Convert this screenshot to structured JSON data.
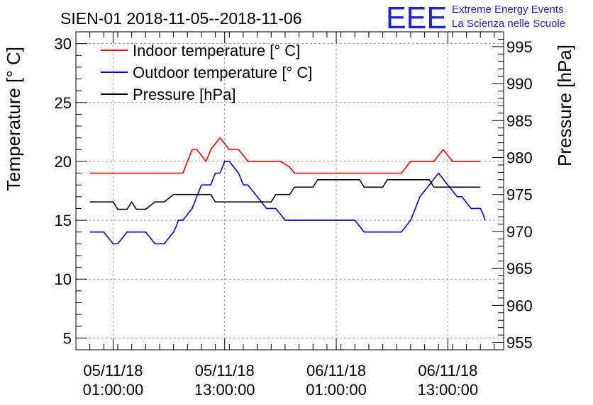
{
  "title": "SIEN-01 2018-11-05--2018-11-06",
  "logo": {
    "mark": "EEE",
    "line1": "Extreme Energy Events",
    "line2": "La Scienza nelle Scuole"
  },
  "chart_data": {
    "type": "line",
    "title": "SIEN-01 2018-11-05--2018-11-06",
    "xlabel": "",
    "ylabel": "Temperature [° C]",
    "y2label": "Pressure [hPa]",
    "xlim_hours": [
      -3,
      43
    ],
    "ylim": [
      4,
      31
    ],
    "y2lim": [
      954,
      997
    ],
    "y_ticks": [
      5,
      10,
      15,
      20,
      25,
      30
    ],
    "y2_ticks": [
      955,
      960,
      965,
      970,
      975,
      980,
      985,
      990,
      995
    ],
    "x_ticks": [
      {
        "hour": 1,
        "line1": "05/11/18",
        "line2": "01:00:00"
      },
      {
        "hour": 13,
        "line1": "05/11/18",
        "line2": "13:00:00"
      },
      {
        "hour": 25,
        "line1": "06/11/18",
        "line2": "01:00:00"
      },
      {
        "hour": 37,
        "line1": "06/11/18",
        "line2": "13:00:00"
      }
    ],
    "grid": true,
    "legend_position": "top-left",
    "series": [
      {
        "name": "Indoor temperature [° C]",
        "axis": "left",
        "color": "#ff0000",
        "points": [
          [
            -1.5,
            19
          ],
          [
            8.5,
            19
          ],
          [
            9,
            20
          ],
          [
            9.5,
            21
          ],
          [
            10,
            21
          ],
          [
            10.5,
            20.5
          ],
          [
            11,
            20
          ],
          [
            11.5,
            21
          ],
          [
            12,
            21.5
          ],
          [
            12.5,
            22
          ],
          [
            13,
            21.5
          ],
          [
            13.5,
            21
          ],
          [
            14,
            21
          ],
          [
            14.5,
            21
          ],
          [
            15,
            20.5
          ],
          [
            15.5,
            20
          ],
          [
            18,
            20
          ],
          [
            19,
            20
          ],
          [
            20,
            19.5
          ],
          [
            20.5,
            19
          ],
          [
            31,
            19
          ],
          [
            32,
            19
          ],
          [
            32.5,
            19.5
          ],
          [
            33,
            20
          ],
          [
            35.5,
            20
          ],
          [
            36,
            20.5
          ],
          [
            36.5,
            21
          ],
          [
            37,
            20.5
          ],
          [
            37.5,
            20
          ],
          [
            38.5,
            20
          ],
          [
            40.5,
            20
          ]
        ]
      },
      {
        "name": "Outdoor temperature [° C]",
        "axis": "left",
        "color": "#0000dd",
        "points": [
          [
            -1.5,
            14
          ],
          [
            0,
            14
          ],
          [
            0.5,
            13.5
          ],
          [
            1,
            13
          ],
          [
            1.5,
            13
          ],
          [
            2,
            13.5
          ],
          [
            2.5,
            14
          ],
          [
            4.5,
            14
          ],
          [
            5,
            13.5
          ],
          [
            5.5,
            13
          ],
          [
            6,
            13
          ],
          [
            6.5,
            13
          ],
          [
            7,
            13.5
          ],
          [
            7.5,
            14
          ],
          [
            7.8,
            14.5
          ],
          [
            8,
            15
          ],
          [
            8.5,
            15
          ],
          [
            9,
            15.5
          ],
          [
            9.5,
            16
          ],
          [
            10,
            17
          ],
          [
            10.5,
            18
          ],
          [
            11.5,
            18
          ],
          [
            12,
            19
          ],
          [
            12.5,
            19
          ],
          [
            13,
            20
          ],
          [
            13.5,
            20
          ],
          [
            14,
            19.5
          ],
          [
            14.5,
            19
          ],
          [
            15,
            18
          ],
          [
            15.5,
            18
          ],
          [
            16,
            17.5
          ],
          [
            16.5,
            17
          ],
          [
            17,
            16.5
          ],
          [
            17.5,
            16
          ],
          [
            18.5,
            16
          ],
          [
            19,
            15.5
          ],
          [
            19.5,
            15
          ],
          [
            27,
            15
          ],
          [
            27.5,
            14.5
          ],
          [
            28,
            14
          ],
          [
            32,
            14
          ],
          [
            32.5,
            14.5
          ],
          [
            33,
            15
          ],
          [
            33.5,
            16
          ],
          [
            34,
            17
          ],
          [
            34.5,
            17.5
          ],
          [
            35,
            18
          ],
          [
            35.5,
            18.5
          ],
          [
            36,
            19
          ],
          [
            36.5,
            18.5
          ],
          [
            37,
            18
          ],
          [
            37.5,
            17.5
          ],
          [
            38,
            17
          ],
          [
            38.5,
            17
          ],
          [
            39,
            16.5
          ],
          [
            39.5,
            16
          ],
          [
            40.5,
            16
          ],
          [
            40.8,
            15.5
          ],
          [
            41,
            15
          ]
        ]
      },
      {
        "name": "Pressure [hPa]",
        "axis": "right",
        "color": "#000000",
        "points": [
          [
            -1.5,
            974
          ],
          [
            1,
            974
          ],
          [
            1.5,
            973
          ],
          [
            2.5,
            973
          ],
          [
            3,
            974
          ],
          [
            3.5,
            973
          ],
          [
            4.5,
            973
          ],
          [
            5.5,
            974
          ],
          [
            6.5,
            974
          ],
          [
            7.5,
            975
          ],
          [
            10,
            975
          ],
          [
            11.5,
            975
          ],
          [
            12,
            974
          ],
          [
            18,
            974
          ],
          [
            18.5,
            975
          ],
          [
            20,
            975
          ],
          [
            20.5,
            976
          ],
          [
            22.5,
            976
          ],
          [
            23,
            977
          ],
          [
            27.5,
            977
          ],
          [
            28,
            976
          ],
          [
            30,
            976
          ],
          [
            30.5,
            977
          ],
          [
            35,
            977
          ],
          [
            35.5,
            976
          ],
          [
            40.5,
            976
          ]
        ]
      }
    ]
  }
}
